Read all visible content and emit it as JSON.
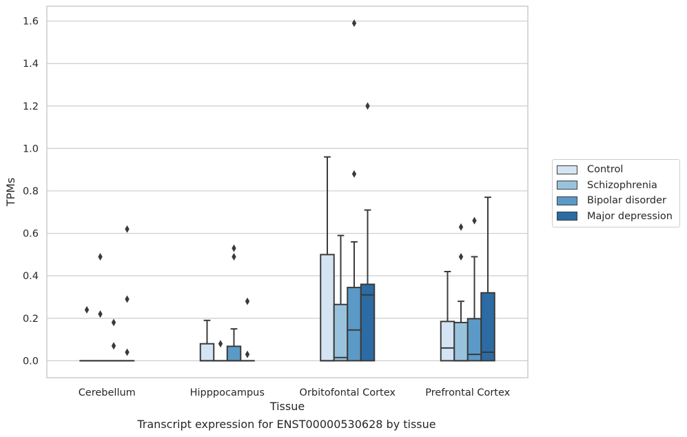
{
  "chart_data": {
    "type": "box",
    "xlabel": "Tissue",
    "ylabel": "TPMs",
    "caption": "Transcript expression for ENST00000530628 by tissue",
    "ylim": [
      -0.08,
      1.67
    ],
    "yticks": [
      0.0,
      0.2,
      0.4,
      0.6,
      0.8,
      1.0,
      1.2,
      1.4,
      1.6
    ],
    "ytick_labels": [
      "0.0",
      "0.2",
      "0.4",
      "0.6",
      "0.8",
      "1.0",
      "1.2",
      "1.4",
      "1.6"
    ],
    "grid": true,
    "legend_position": "right",
    "categories": [
      "Cerebellum",
      "Hipppocampus",
      "Orbitofontal Cortex",
      "Prefrontal Cortex"
    ],
    "series": [
      {
        "name": "Control",
        "color": "#d4e4f3",
        "boxes": [
          {
            "q1": 0.0,
            "median": 0.0,
            "q3": 0.0,
            "whislo": 0.0,
            "whishi": 0.0,
            "fliers": [
              0.24
            ]
          },
          {
            "q1": 0.0,
            "median": 0.0,
            "q3": 0.08,
            "whislo": 0.0,
            "whishi": 0.19,
            "fliers": []
          },
          {
            "q1": 0.0,
            "median": 0.0,
            "q3": 0.5,
            "whislo": 0.0,
            "whishi": 0.96,
            "fliers": []
          },
          {
            "q1": 0.0,
            "median": 0.06,
            "q3": 0.185,
            "whislo": 0.0,
            "whishi": 0.42,
            "fliers": []
          }
        ]
      },
      {
        "name": "Schizophrenia",
        "color": "#99c3dd",
        "boxes": [
          {
            "q1": 0.0,
            "median": 0.0,
            "q3": 0.0,
            "whislo": 0.0,
            "whishi": 0.0,
            "fliers": [
              0.22,
              0.49
            ]
          },
          {
            "q1": 0.0,
            "median": 0.0,
            "q3": 0.0,
            "whislo": 0.0,
            "whishi": 0.0,
            "fliers": [
              0.08
            ]
          },
          {
            "q1": 0.0,
            "median": 0.015,
            "q3": 0.265,
            "whislo": 0.0,
            "whishi": 0.59,
            "fliers": []
          },
          {
            "q1": 0.0,
            "median": 0.0,
            "q3": 0.18,
            "whislo": 0.0,
            "whishi": 0.28,
            "fliers": [
              0.49,
              0.63
            ]
          }
        ]
      },
      {
        "name": "Bipolar disorder",
        "color": "#5b9ac7",
        "boxes": [
          {
            "q1": 0.0,
            "median": 0.0,
            "q3": 0.0,
            "whislo": 0.0,
            "whishi": 0.0,
            "fliers": [
              0.07,
              0.18
            ]
          },
          {
            "q1": 0.0,
            "median": 0.0,
            "q3": 0.068,
            "whislo": 0.0,
            "whishi": 0.15,
            "fliers": [
              0.49,
              0.53
            ]
          },
          {
            "q1": 0.0,
            "median": 0.145,
            "q3": 0.345,
            "whislo": 0.0,
            "whishi": 0.56,
            "fliers": [
              0.88,
              1.59
            ]
          },
          {
            "q1": 0.0,
            "median": 0.03,
            "q3": 0.198,
            "whislo": 0.0,
            "whishi": 0.49,
            "fliers": [
              0.66
            ]
          }
        ]
      },
      {
        "name": "Major depression",
        "color": "#2c6ba3",
        "boxes": [
          {
            "q1": 0.0,
            "median": 0.0,
            "q3": 0.0,
            "whislo": 0.0,
            "whishi": 0.0,
            "fliers": [
              0.04,
              0.29,
              0.62
            ]
          },
          {
            "q1": 0.0,
            "median": 0.0,
            "q3": 0.0,
            "whislo": 0.0,
            "whishi": 0.0,
            "fliers": [
              0.03,
              0.28
            ]
          },
          {
            "q1": 0.0,
            "median": 0.31,
            "q3": 0.36,
            "whislo": 0.0,
            "whishi": 0.71,
            "fliers": [
              1.2
            ]
          },
          {
            "q1": 0.0,
            "median": 0.04,
            "q3": 0.32,
            "whislo": 0.0,
            "whishi": 0.77,
            "fliers": []
          }
        ]
      }
    ]
  }
}
